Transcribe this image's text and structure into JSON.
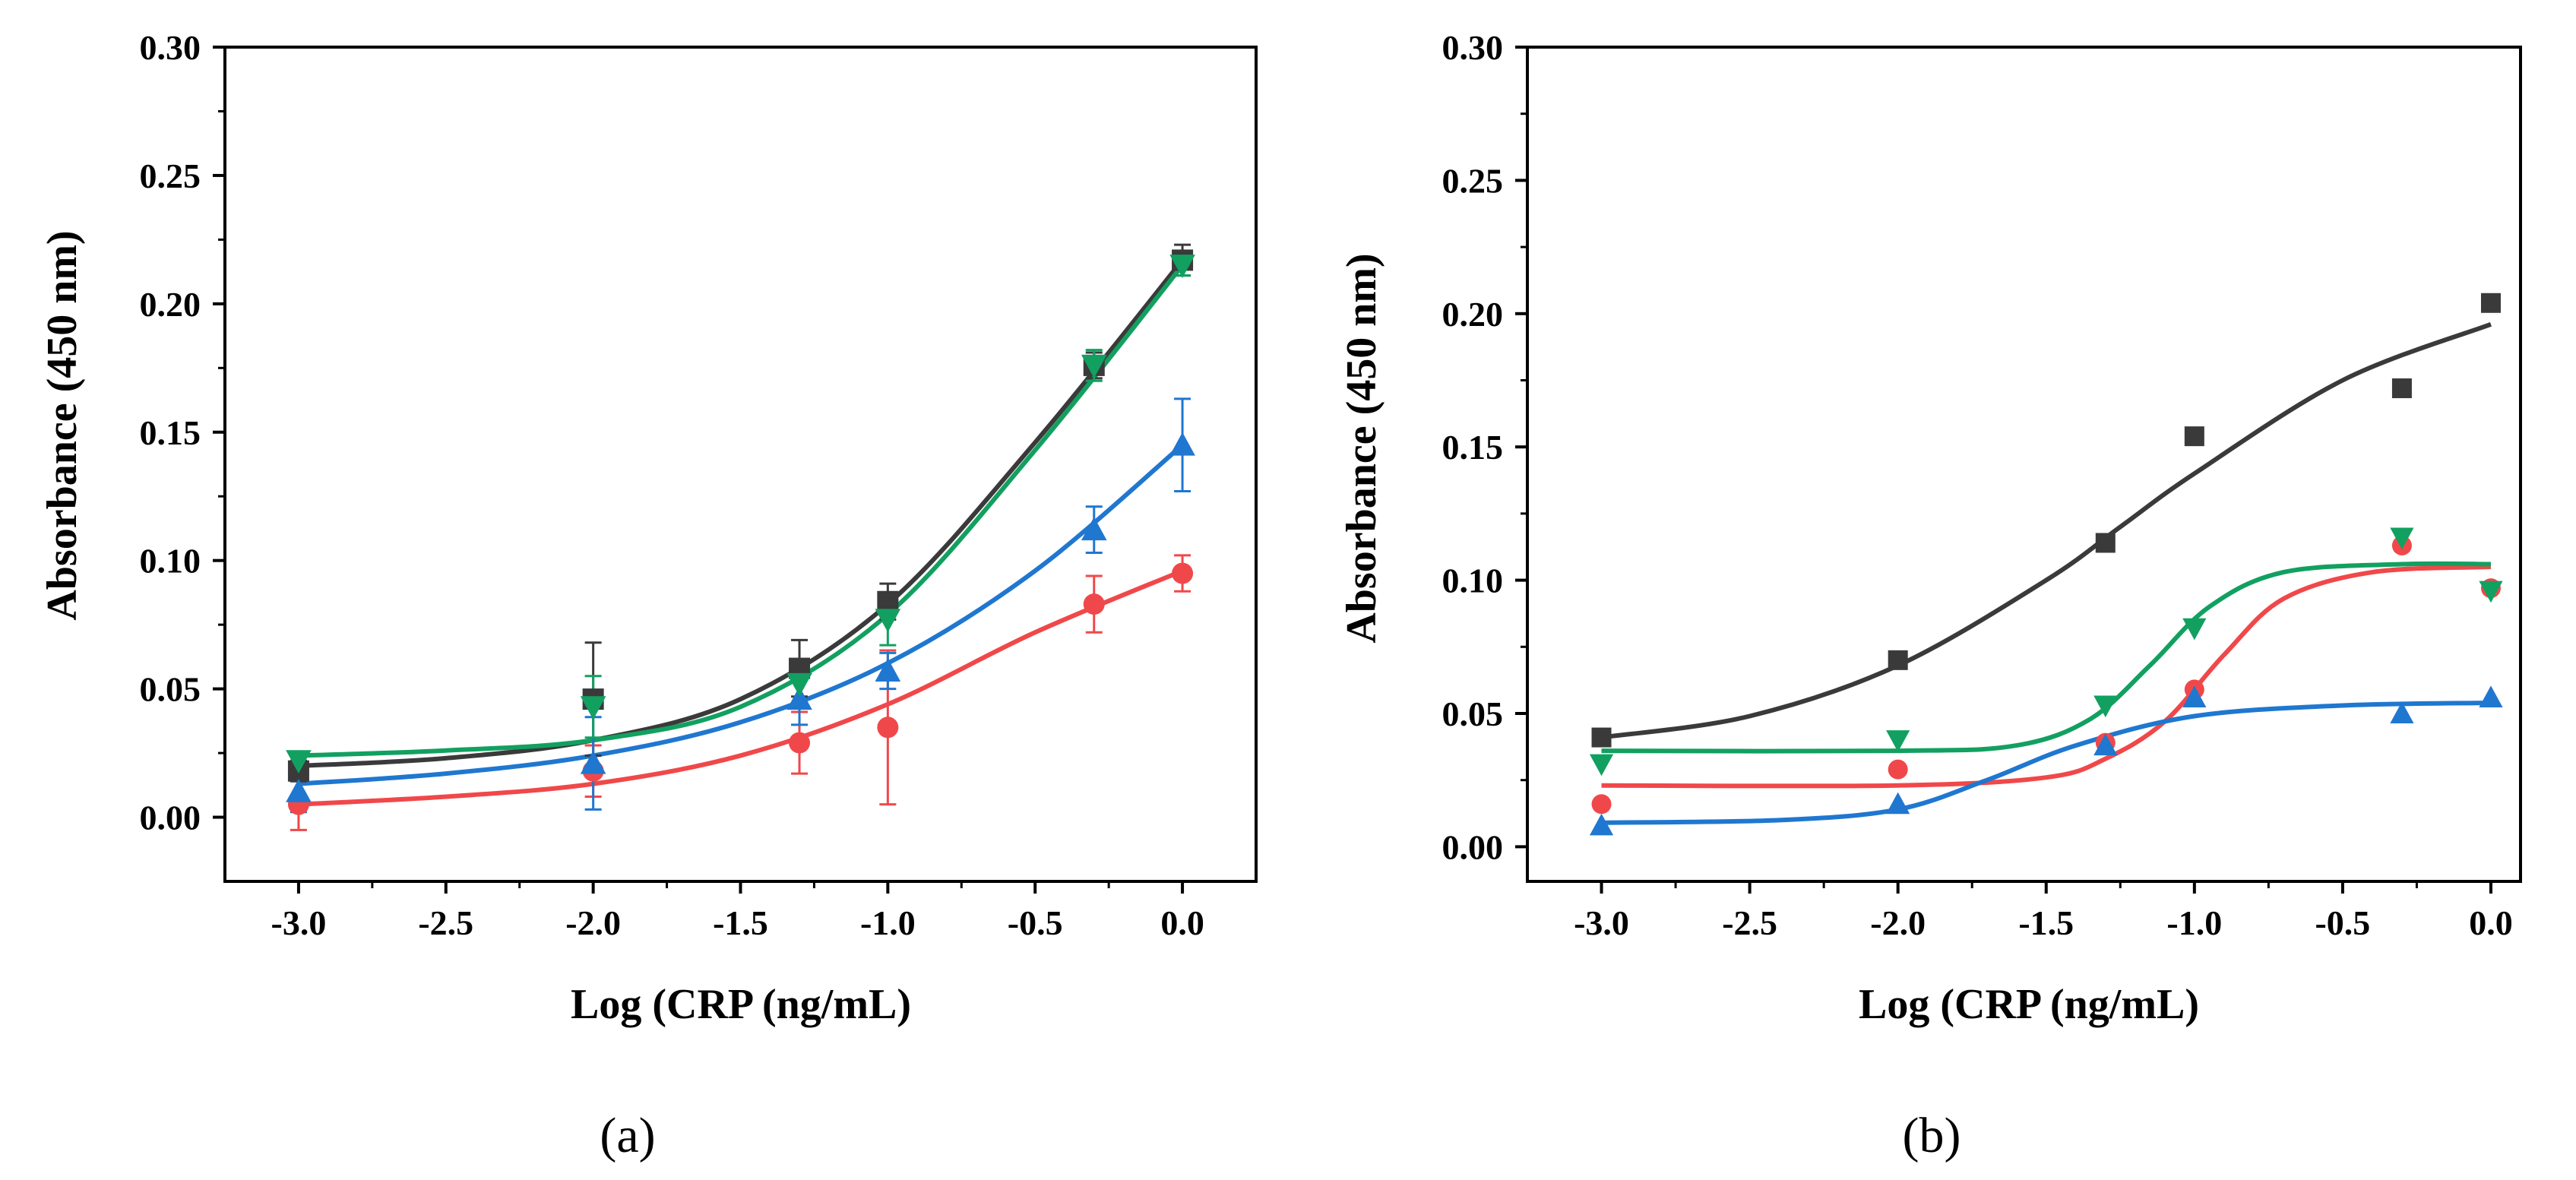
{
  "chart_data": [
    {
      "type": "scatter",
      "panel_label": "(a)",
      "xlabel": "Log (CRP (ng/mL)",
      "ylabel": "Absorbance (450 nm)",
      "xlim": [
        -3.25,
        0.25
      ],
      "ylim": [
        -0.025,
        0.3
      ],
      "xticks": [
        -3.0,
        -2.5,
        -2.0,
        -1.5,
        -1.0,
        -0.5,
        0.0
      ],
      "xtick_labels": [
        "-3.0",
        "-2.5",
        "-2.0",
        "-1.5",
        "-1.0",
        "-0.5",
        "0.0"
      ],
      "yticks": [
        0.0,
        0.05,
        0.1,
        0.15,
        0.2,
        0.25,
        0.3
      ],
      "ytick_labels": [
        "0.00",
        "0.05",
        "0.10",
        "0.15",
        "0.20",
        "0.25",
        "0.30"
      ],
      "series": [
        {
          "name": "black",
          "color": "#3a3a3a",
          "marker": "square",
          "x": [
            -3.0,
            -2.0,
            -1.3,
            -1.0,
            -0.3,
            0.0
          ],
          "y": [
            0.018,
            0.046,
            0.058,
            0.084,
            0.176,
            0.217
          ],
          "err": [
            0.004,
            0.022,
            0.011,
            0.007,
            0.005,
            0.006
          ],
          "fit": [
            [
              -3.0,
              0.02
            ],
            [
              -2.5,
              0.023
            ],
            [
              -2.0,
              0.03
            ],
            [
              -1.5,
              0.046
            ],
            [
              -1.0,
              0.083
            ],
            [
              -0.5,
              0.146
            ],
            [
              0.0,
              0.217
            ]
          ]
        },
        {
          "name": "red",
          "color": "#f0484a",
          "marker": "circle",
          "x": [
            -3.0,
            -2.0,
            -1.3,
            -1.0,
            -0.3,
            0.0
          ],
          "y": [
            0.005,
            0.018,
            0.029,
            0.035,
            0.083,
            0.095
          ],
          "err": [
            0.01,
            0.01,
            0.012,
            0.03,
            0.011,
            0.007
          ],
          "fit": [
            [
              -3.0,
              0.005
            ],
            [
              -2.5,
              0.008
            ],
            [
              -2.0,
              0.013
            ],
            [
              -1.5,
              0.024
            ],
            [
              -1.0,
              0.044
            ],
            [
              -0.5,
              0.072
            ],
            [
              0.0,
              0.096
            ]
          ]
        },
        {
          "name": "blue",
          "color": "#1f77d0",
          "marker": "triangle-up",
          "x": [
            -3.0,
            -2.0,
            -1.3,
            -1.0,
            -0.3,
            0.0
          ],
          "y": [
            0.01,
            0.021,
            0.046,
            0.057,
            0.112,
            0.145
          ],
          "err": [
            0.008,
            0.018,
            0.01,
            0.007,
            0.009,
            0.018
          ],
          "fit": [
            [
              -3.0,
              0.013
            ],
            [
              -2.5,
              0.017
            ],
            [
              -2.0,
              0.024
            ],
            [
              -1.5,
              0.037
            ],
            [
              -1.0,
              0.06
            ],
            [
              -0.5,
              0.096
            ],
            [
              0.0,
              0.145
            ]
          ]
        },
        {
          "name": "green",
          "color": "#12a060",
          "marker": "triangle-down",
          "x": [
            -3.0,
            -2.0,
            -1.3,
            -1.0,
            -0.3,
            0.0
          ],
          "y": [
            0.022,
            0.043,
            0.052,
            0.077,
            0.176,
            0.215
          ],
          "err": [
            0.003,
            0.012,
            0.008,
            0.01,
            0.006,
            0.004
          ],
          "fit": [
            [
              -3.0,
              0.024
            ],
            [
              -2.5,
              0.026
            ],
            [
              -2.0,
              0.03
            ],
            [
              -1.5,
              0.043
            ],
            [
              -1.0,
              0.079
            ],
            [
              -0.5,
              0.143
            ],
            [
              0.0,
              0.215
            ]
          ]
        }
      ]
    },
    {
      "type": "scatter",
      "panel_label": "(b)",
      "xlabel": "Log (CRP (ng/mL)",
      "ylabel": "Absorbance (450 nm)",
      "xlim": [
        -3.25,
        0.1
      ],
      "ylim": [
        -0.013,
        0.3
      ],
      "xticks": [
        -3.0,
        -2.5,
        -2.0,
        -1.5,
        -1.0,
        -0.5,
        0.0
      ],
      "xtick_labels": [
        "-3.0",
        "-2.5",
        "-2.0",
        "-1.5",
        "-1.0",
        "-0.5",
        "0.0"
      ],
      "yticks": [
        0.0,
        0.05,
        0.1,
        0.15,
        0.2,
        0.25,
        0.3
      ],
      "ytick_labels": [
        "0.00",
        "0.05",
        "0.10",
        "0.15",
        "0.20",
        "0.25",
        "0.30"
      ],
      "series": [
        {
          "name": "black",
          "color": "#3a3a3a",
          "marker": "square",
          "x": [
            -3.0,
            -2.0,
            -1.3,
            -1.0,
            -0.3,
            0.0
          ],
          "y": [
            0.041,
            0.07,
            0.114,
            0.154,
            0.172,
            0.204
          ],
          "fit": [
            [
              -3.0,
              0.041
            ],
            [
              -2.5,
              0.049
            ],
            [
              -2.0,
              0.068
            ],
            [
              -1.5,
              0.1
            ],
            [
              -1.25,
              0.12
            ],
            [
              -1.0,
              0.14
            ],
            [
              -0.5,
              0.175
            ],
            [
              0.0,
              0.196
            ]
          ]
        },
        {
          "name": "red",
          "color": "#f0484a",
          "marker": "circle",
          "x": [
            -3.0,
            -2.0,
            -1.3,
            -1.0,
            -0.3,
            0.0
          ],
          "y": [
            0.016,
            0.029,
            0.039,
            0.059,
            0.113,
            0.097
          ],
          "fit": [
            [
              -3.0,
              0.023
            ],
            [
              -2.0,
              0.023
            ],
            [
              -1.5,
              0.026
            ],
            [
              -1.3,
              0.033
            ],
            [
              -1.1,
              0.047
            ],
            [
              -0.9,
              0.072
            ],
            [
              -0.7,
              0.093
            ],
            [
              -0.4,
              0.103
            ],
            [
              0.0,
              0.105
            ]
          ]
        },
        {
          "name": "blue",
          "color": "#1f77d0",
          "marker": "triangle-up",
          "x": [
            -3.0,
            -2.0,
            -1.3,
            -1.0,
            -0.3,
            0.0
          ],
          "y": [
            0.008,
            0.016,
            0.038,
            0.056,
            0.05,
            0.056
          ],
          "fit": [
            [
              -3.0,
              0.009
            ],
            [
              -2.4,
              0.01
            ],
            [
              -2.0,
              0.014
            ],
            [
              -1.7,
              0.025
            ],
            [
              -1.4,
              0.038
            ],
            [
              -1.0,
              0.049
            ],
            [
              -0.5,
              0.053
            ],
            [
              0.0,
              0.054
            ]
          ]
        },
        {
          "name": "green",
          "color": "#12a060",
          "marker": "triangle-down",
          "x": [
            -3.0,
            -2.0,
            -1.3,
            -1.0,
            -0.3,
            0.0
          ],
          "y": [
            0.031,
            0.04,
            0.053,
            0.082,
            0.116,
            0.096
          ],
          "fit": [
            [
              -3.0,
              0.036
            ],
            [
              -2.0,
              0.036
            ],
            [
              -1.6,
              0.038
            ],
            [
              -1.35,
              0.048
            ],
            [
              -1.15,
              0.068
            ],
            [
              -0.95,
              0.09
            ],
            [
              -0.7,
              0.103
            ],
            [
              -0.3,
              0.106
            ],
            [
              0.0,
              0.106
            ]
          ]
        }
      ]
    }
  ]
}
